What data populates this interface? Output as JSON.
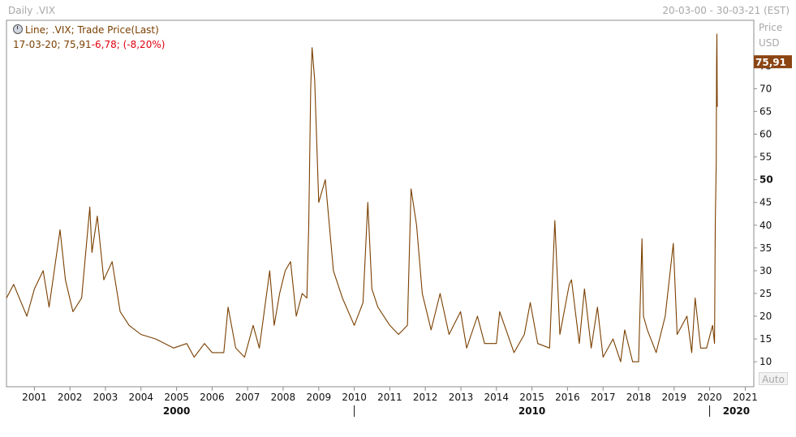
{
  "header": {
    "left": "Daily .VIX",
    "right": "20-03-00 - 30-03-21 (EST)"
  },
  "legend": {
    "line1": "Line; .VIX; Trade Price(Last)",
    "line2_prefix": "17-03-20; 75,91",
    "line2_change": "-6,78; (-8,20%)"
  },
  "axis": {
    "price_title": "Price",
    "price_unit": "USD",
    "last_price_label": "75,91",
    "auto_button": "Auto",
    "y_ticks": [
      {
        "label": "10",
        "value": 10,
        "bold": false
      },
      {
        "label": "15",
        "value": 15,
        "bold": false
      },
      {
        "label": "20",
        "value": 20,
        "bold": false
      },
      {
        "label": "25",
        "value": 25,
        "bold": false
      },
      {
        "label": "30",
        "value": 30,
        "bold": false
      },
      {
        "label": "35",
        "value": 35,
        "bold": false
      },
      {
        "label": "40",
        "value": 40,
        "bold": false
      },
      {
        "label": "45",
        "value": 45,
        "bold": false
      },
      {
        "label": "50",
        "value": 50,
        "bold": true
      },
      {
        "label": "55",
        "value": 55,
        "bold": false
      },
      {
        "label": "60",
        "value": 60,
        "bold": false
      },
      {
        "label": "65",
        "value": 65,
        "bold": false
      },
      {
        "label": "70",
        "value": 70,
        "bold": false
      },
      {
        "label": "75",
        "value": 75,
        "bold": false
      }
    ],
    "x_years": [
      "2001",
      "2002",
      "2003",
      "2004",
      "2005",
      "2006",
      "2007",
      "2008",
      "2009",
      "2010",
      "2011",
      "2012",
      "2013",
      "2014",
      "2015",
      "2016",
      "2017",
      "2018",
      "2019",
      "2020",
      "2021"
    ],
    "decades": [
      "2000",
      "2010",
      "2020"
    ]
  },
  "colors": {
    "line": "#7a3f00",
    "last_price_bg": "#8b4513",
    "negative": "#e1000f",
    "muted_text": "#a8a8a8"
  },
  "chart_data": {
    "type": "line",
    "series": [
      {
        "name": ".VIX",
        "x": [
          "2000-03-20",
          "2000-06-01",
          "2000-10-15",
          "2001-01-01",
          "2001-04-01",
          "2001-06-01",
          "2001-09-21",
          "2001-11-15",
          "2002-02-01",
          "2002-05-01",
          "2002-07-24",
          "2002-08-15",
          "2002-10-09",
          "2002-12-15",
          "2003-03-11",
          "2003-06-01",
          "2003-09-01",
          "2004-01-01",
          "2004-06-01",
          "2004-12-01",
          "2005-04-15",
          "2005-07-01",
          "2005-10-15",
          "2006-01-01",
          "2006-05-01",
          "2006-06-14",
          "2006-09-01",
          "2006-12-01",
          "2007-02-27",
          "2007-05-01",
          "2007-08-16",
          "2007-10-01",
          "2007-11-26",
          "2008-01-22",
          "2008-03-17",
          "2008-05-15",
          "2008-07-15",
          "2008-09-01",
          "2008-09-20",
          "2008-10-10",
          "2008-10-24",
          "2008-11-20",
          "2009-01-01",
          "2009-03-09",
          "2009-06-01",
          "2009-09-01",
          "2010-01-01",
          "2010-04-01",
          "2010-05-20",
          "2010-07-01",
          "2010-09-01",
          "2011-01-01",
          "2011-04-01",
          "2011-07-01",
          "2011-08-08",
          "2011-10-03",
          "2011-12-01",
          "2012-03-01",
          "2012-06-01",
          "2012-09-01",
          "2012-12-28",
          "2013-03-01",
          "2013-06-20",
          "2013-09-01",
          "2014-01-01",
          "2014-02-03",
          "2014-07-01",
          "2014-10-15",
          "2014-12-15",
          "2015-03-01",
          "2015-07-01",
          "2015-08-24",
          "2015-10-15",
          "2016-01-20",
          "2016-02-11",
          "2016-05-01",
          "2016-06-24",
          "2016-09-01",
          "2016-11-04",
          "2017-01-01",
          "2017-04-13",
          "2017-07-01",
          "2017-08-11",
          "2017-11-01",
          "2018-01-01",
          "2018-02-05",
          "2018-02-20",
          "2018-04-01",
          "2018-07-01",
          "2018-10-01",
          "2018-12-24",
          "2019-02-01",
          "2019-05-13",
          "2019-07-01",
          "2019-08-05",
          "2019-10-01",
          "2019-12-01",
          "2020-01-31",
          "2020-02-20",
          "2020-02-28",
          "2020-03-09",
          "2020-03-12",
          "2020-03-16",
          "2020-03-17",
          "2020-03-18",
          "2020-03-20"
        ],
        "values": [
          24,
          27,
          20,
          26,
          30,
          22,
          39,
          28,
          21,
          24,
          44,
          34,
          42,
          28,
          32,
          21,
          18,
          16,
          15,
          13,
          14,
          11,
          14,
          12,
          12,
          22,
          13,
          11,
          18,
          13,
          30,
          18,
          25,
          30,
          32,
          20,
          25,
          24,
          40,
          70,
          79,
          72,
          45,
          50,
          30,
          24,
          18,
          23,
          45,
          26,
          22,
          18,
          16,
          18,
          48,
          40,
          25,
          17,
          25,
          16,
          21,
          13,
          20,
          14,
          14,
          21,
          12,
          16,
          23,
          14,
          13,
          41,
          16,
          27,
          28,
          14,
          26,
          13,
          22,
          11,
          15,
          10,
          17,
          10,
          10,
          37,
          20,
          17,
          12,
          20,
          36,
          16,
          20,
          12,
          24,
          13,
          13,
          18,
          14,
          40,
          54,
          75,
          82,
          76,
          72,
          66
        ]
      }
    ],
    "ylim": [
      7,
      82
    ],
    "xlim": [
      "2000-03-20",
      "2021-03-30"
    ],
    "ylabel": "Price USD",
    "grid": false,
    "legend_placement": "top-left"
  }
}
